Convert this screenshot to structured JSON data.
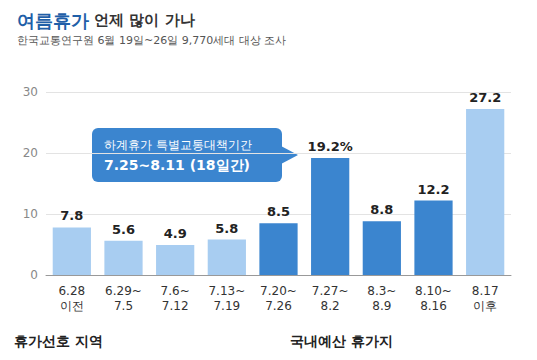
{
  "chart_data": {
    "type": "bar",
    "title": "여름휴가 언제 많이 가나",
    "subtitle": "한국교통연구원 6월 19일~26일 9,770세대 대상 조사",
    "categories": [
      "6.28\n이전",
      "6.29~\n7.5",
      "7.6~\n7.12",
      "7.13~\n7.19",
      "7.20~\n7.26",
      "7.27~\n8.2",
      "8.3~\n8.9",
      "8.10~\n8.16",
      "8.17\n이후"
    ],
    "values": [
      7.8,
      5.6,
      4.9,
      5.8,
      8.5,
      19.2,
      8.8,
      12.2,
      27.2
    ],
    "value_labels": [
      "7.8",
      "5.6",
      "4.9",
      "5.8",
      "8.5",
      "19.2%",
      "8.8",
      "12.2",
      "27.2"
    ],
    "colors": [
      "#a8cdf1",
      "#a8cdf1",
      "#a8cdf1",
      "#a8cdf1",
      "#3b85cf",
      "#3b85cf",
      "#3b85cf",
      "#3b85cf",
      "#a8cdf1"
    ],
    "ylim": [
      0,
      30
    ],
    "yticks": [
      0,
      10,
      20,
      30
    ],
    "grid": true,
    "data_labels": true,
    "annotation": "하계휴가 특별교통대책기간\n7.25~8.11 (18일간)",
    "sections": [
      "휴가선호 지역",
      "국내예산 휴가지"
    ]
  }
}
